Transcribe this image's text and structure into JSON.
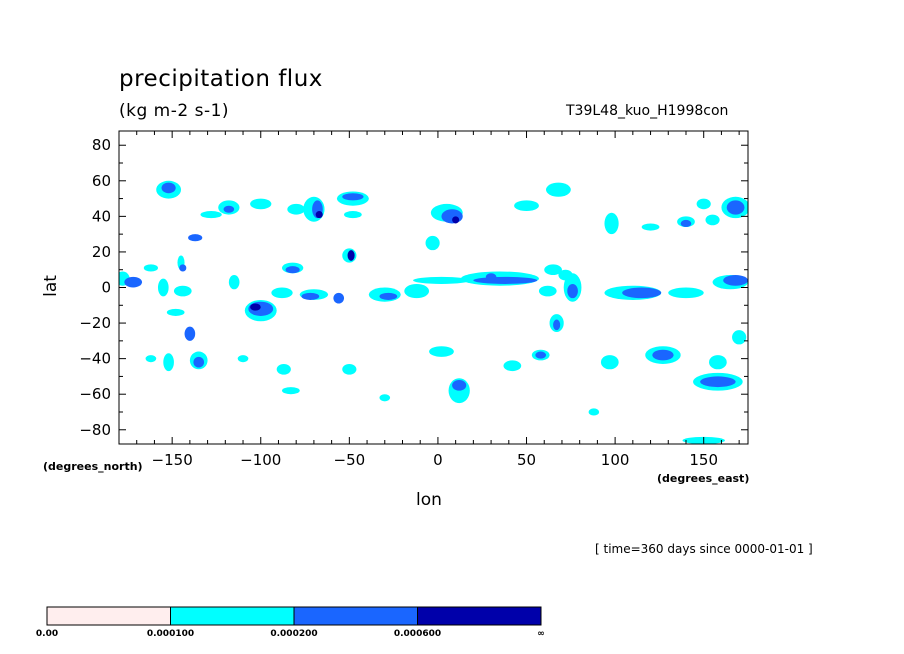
{
  "header": {
    "title": "precipitation flux",
    "units": "(kg m-2 s-1)",
    "run_label": "T39L48_kuo_H1998con"
  },
  "footer": {
    "time_label": "[ time=360 days since 0000-01-01 ]"
  },
  "chart_data": {
    "type": "heatmap",
    "title": "precipitation flux",
    "subtitle": "(kg m-2 s-1)",
    "xlabel": "lon",
    "ylabel": "lat",
    "x_unit": "(degrees_east)",
    "y_unit": "(degrees_north)",
    "xlim": [
      -180,
      175
    ],
    "ylim": [
      -88,
      88
    ],
    "x_ticks": [
      -150,
      -100,
      -50,
      0,
      50,
      100,
      150
    ],
    "y_ticks": [
      80,
      60,
      40,
      20,
      0,
      -20,
      -40,
      -60,
      -80
    ],
    "colorbar": {
      "levels": [
        "0.00",
        "0.000100",
        "0.000200",
        "0.000600",
        "∞"
      ],
      "colors": [
        "#ffeeee",
        "#00ffff",
        "#1a66ff",
        "#0000aa"
      ]
    },
    "blobs": [
      {
        "lon": -178,
        "lat": 5,
        "level": 1,
        "rx": 4,
        "ry": 4
      },
      {
        "lon": -172,
        "lat": 3,
        "level": 2,
        "rx": 5,
        "ry": 3
      },
      {
        "lon": -162,
        "lat": 11,
        "level": 1,
        "rx": 4,
        "ry": 2
      },
      {
        "lon": -155,
        "lat": 0,
        "level": 1,
        "rx": 3,
        "ry": 5
      },
      {
        "lon": -152,
        "lat": 55,
        "level": 1,
        "rx": 7,
        "ry": 5
      },
      {
        "lon": -152,
        "lat": 56,
        "level": 2,
        "rx": 4,
        "ry": 3
      },
      {
        "lon": -148,
        "lat": -14,
        "level": 1,
        "rx": 5,
        "ry": 2
      },
      {
        "lon": -145,
        "lat": 14,
        "level": 1,
        "rx": 2,
        "ry": 4
      },
      {
        "lon": -144,
        "lat": 11,
        "level": 2,
        "rx": 2,
        "ry": 2
      },
      {
        "lon": -140,
        "lat": -26,
        "level": 2,
        "rx": 3,
        "ry": 4
      },
      {
        "lon": -137,
        "lat": 28,
        "level": 2,
        "rx": 4,
        "ry": 2
      },
      {
        "lon": -144,
        "lat": -2,
        "level": 1,
        "rx": 5,
        "ry": 3
      },
      {
        "lon": -152,
        "lat": -42,
        "level": 1,
        "rx": 3,
        "ry": 5
      },
      {
        "lon": -135,
        "lat": -41,
        "level": 1,
        "rx": 5,
        "ry": 5
      },
      {
        "lon": -135,
        "lat": -42,
        "level": 2,
        "rx": 3,
        "ry": 3
      },
      {
        "lon": -118,
        "lat": 45,
        "level": 1,
        "rx": 6,
        "ry": 4
      },
      {
        "lon": -118,
        "lat": 44,
        "level": 2,
        "rx": 3,
        "ry": 2
      },
      {
        "lon": -128,
        "lat": 41,
        "level": 1,
        "rx": 6,
        "ry": 2
      },
      {
        "lon": -115,
        "lat": 3,
        "level": 1,
        "rx": 3,
        "ry": 4
      },
      {
        "lon": -100,
        "lat": 47,
        "level": 1,
        "rx": 6,
        "ry": 3
      },
      {
        "lon": -100,
        "lat": -13,
        "level": 1,
        "rx": 9,
        "ry": 6
      },
      {
        "lon": -100,
        "lat": -12,
        "level": 2,
        "rx": 7,
        "ry": 4
      },
      {
        "lon": -103,
        "lat": -11,
        "level": 3,
        "rx": 3,
        "ry": 2
      },
      {
        "lon": -82,
        "lat": 11,
        "level": 1,
        "rx": 6,
        "ry": 3
      },
      {
        "lon": -82,
        "lat": 10,
        "level": 2,
        "rx": 4,
        "ry": 2
      },
      {
        "lon": -88,
        "lat": -3,
        "level": 1,
        "rx": 6,
        "ry": 3
      },
      {
        "lon": -70,
        "lat": 44,
        "level": 1,
        "rx": 6,
        "ry": 7
      },
      {
        "lon": -68,
        "lat": 44,
        "level": 2,
        "rx": 3,
        "ry": 5
      },
      {
        "lon": -67,
        "lat": 41,
        "level": 3,
        "rx": 2,
        "ry": 2
      },
      {
        "lon": -80,
        "lat": 44,
        "level": 1,
        "rx": 5,
        "ry": 3
      },
      {
        "lon": -70,
        "lat": -4,
        "level": 1,
        "rx": 8,
        "ry": 3
      },
      {
        "lon": -72,
        "lat": -5,
        "level": 2,
        "rx": 5,
        "ry": 2
      },
      {
        "lon": -56,
        "lat": -6,
        "level": 2,
        "rx": 3,
        "ry": 3
      },
      {
        "lon": -48,
        "lat": 50,
        "level": 1,
        "rx": 9,
        "ry": 4
      },
      {
        "lon": -48,
        "lat": 51,
        "level": 2,
        "rx": 6,
        "ry": 2
      },
      {
        "lon": -50,
        "lat": 18,
        "level": 1,
        "rx": 4,
        "ry": 4
      },
      {
        "lon": -49,
        "lat": 18,
        "level": 3,
        "rx": 2,
        "ry": 3
      },
      {
        "lon": -48,
        "lat": 41,
        "level": 1,
        "rx": 5,
        "ry": 2
      },
      {
        "lon": -30,
        "lat": -4,
        "level": 1,
        "rx": 9,
        "ry": 4
      },
      {
        "lon": -28,
        "lat": -5,
        "level": 2,
        "rx": 5,
        "ry": 2
      },
      {
        "lon": -12,
        "lat": -2,
        "level": 1,
        "rx": 7,
        "ry": 4
      },
      {
        "lon": 2,
        "lat": 4,
        "level": 1,
        "rx": 16,
        "ry": 2
      },
      {
        "lon": 5,
        "lat": 42,
        "level": 1,
        "rx": 9,
        "ry": 5
      },
      {
        "lon": 8,
        "lat": 40,
        "level": 2,
        "rx": 6,
        "ry": 4
      },
      {
        "lon": 10,
        "lat": 38,
        "level": 3,
        "rx": 2,
        "ry": 2
      },
      {
        "lon": -3,
        "lat": 25,
        "level": 1,
        "rx": 4,
        "ry": 4
      },
      {
        "lon": 2,
        "lat": -36,
        "level": 1,
        "rx": 7,
        "ry": 3
      },
      {
        "lon": 12,
        "lat": -58,
        "level": 1,
        "rx": 6,
        "ry": 7
      },
      {
        "lon": 12,
        "lat": -55,
        "level": 2,
        "rx": 4,
        "ry": 3
      },
      {
        "lon": 35,
        "lat": 5,
        "level": 1,
        "rx": 22,
        "ry": 4
      },
      {
        "lon": 38,
        "lat": 4,
        "level": 2,
        "rx": 18,
        "ry": 2
      },
      {
        "lon": 30,
        "lat": 6,
        "level": 2,
        "rx": 3,
        "ry": 2
      },
      {
        "lon": 50,
        "lat": 46,
        "level": 1,
        "rx": 7,
        "ry": 3
      },
      {
        "lon": 58,
        "lat": -38,
        "level": 1,
        "rx": 5,
        "ry": 3
      },
      {
        "lon": 58,
        "lat": -38,
        "level": 2,
        "rx": 3,
        "ry": 2
      },
      {
        "lon": 42,
        "lat": -44,
        "level": 1,
        "rx": 5,
        "ry": 3
      },
      {
        "lon": 68,
        "lat": 55,
        "level": 1,
        "rx": 7,
        "ry": 4
      },
      {
        "lon": 65,
        "lat": 10,
        "level": 1,
        "rx": 5,
        "ry": 3
      },
      {
        "lon": 72,
        "lat": 7,
        "level": 1,
        "rx": 4,
        "ry": 3
      },
      {
        "lon": 62,
        "lat": -2,
        "level": 1,
        "rx": 5,
        "ry": 3
      },
      {
        "lon": 67,
        "lat": -20,
        "level": 1,
        "rx": 4,
        "ry": 5
      },
      {
        "lon": 67,
        "lat": -21,
        "level": 2,
        "rx": 2,
        "ry": 3
      },
      {
        "lon": 76,
        "lat": 0,
        "level": 1,
        "rx": 5,
        "ry": 8
      },
      {
        "lon": 76,
        "lat": -2,
        "level": 2,
        "rx": 3,
        "ry": 4
      },
      {
        "lon": 98,
        "lat": 36,
        "level": 1,
        "rx": 4,
        "ry": 6
      },
      {
        "lon": 97,
        "lat": -42,
        "level": 1,
        "rx": 5,
        "ry": 4
      },
      {
        "lon": 110,
        "lat": -3,
        "level": 1,
        "rx": 16,
        "ry": 4
      },
      {
        "lon": 115,
        "lat": -3,
        "level": 2,
        "rx": 11,
        "ry": 3
      },
      {
        "lon": 127,
        "lat": -38,
        "level": 1,
        "rx": 10,
        "ry": 5
      },
      {
        "lon": 127,
        "lat": -38,
        "level": 2,
        "rx": 6,
        "ry": 3
      },
      {
        "lon": 120,
        "lat": 34,
        "level": 1,
        "rx": 5,
        "ry": 2
      },
      {
        "lon": 140,
        "lat": 37,
        "level": 1,
        "rx": 5,
        "ry": 3
      },
      {
        "lon": 140,
        "lat": 36,
        "level": 2,
        "rx": 3,
        "ry": 2
      },
      {
        "lon": 140,
        "lat": -3,
        "level": 1,
        "rx": 10,
        "ry": 3
      },
      {
        "lon": 155,
        "lat": 38,
        "level": 1,
        "rx": 4,
        "ry": 3
      },
      {
        "lon": 150,
        "lat": 47,
        "level": 1,
        "rx": 4,
        "ry": 3
      },
      {
        "lon": 168,
        "lat": 45,
        "level": 1,
        "rx": 8,
        "ry": 6
      },
      {
        "lon": 168,
        "lat": 45,
        "level": 2,
        "rx": 5,
        "ry": 4
      },
      {
        "lon": 165,
        "lat": 3,
        "level": 1,
        "rx": 10,
        "ry": 4
      },
      {
        "lon": 168,
        "lat": 4,
        "level": 2,
        "rx": 7,
        "ry": 3
      },
      {
        "lon": 158,
        "lat": -53,
        "level": 1,
        "rx": 14,
        "ry": 5
      },
      {
        "lon": 158,
        "lat": -53,
        "level": 2,
        "rx": 10,
        "ry": 3
      },
      {
        "lon": 158,
        "lat": -42,
        "level": 1,
        "rx": 5,
        "ry": 4
      },
      {
        "lon": 170,
        "lat": -28,
        "level": 1,
        "rx": 4,
        "ry": 4
      },
      {
        "lon": 150,
        "lat": -86,
        "level": 1,
        "rx": 12,
        "ry": 2
      },
      {
        "lon": -83,
        "lat": -58,
        "level": 1,
        "rx": 5,
        "ry": 2
      },
      {
        "lon": -87,
        "lat": -46,
        "level": 1,
        "rx": 4,
        "ry": 3
      },
      {
        "lon": -50,
        "lat": -46,
        "level": 1,
        "rx": 4,
        "ry": 3
      },
      {
        "lon": -30,
        "lat": -62,
        "level": 1,
        "rx": 3,
        "ry": 2
      },
      {
        "lon": 88,
        "lat": -70,
        "level": 1,
        "rx": 3,
        "ry": 2
      },
      {
        "lon": -162,
        "lat": -40,
        "level": 1,
        "rx": 3,
        "ry": 2
      },
      {
        "lon": -110,
        "lat": -40,
        "level": 1,
        "rx": 3,
        "ry": 2
      }
    ]
  }
}
